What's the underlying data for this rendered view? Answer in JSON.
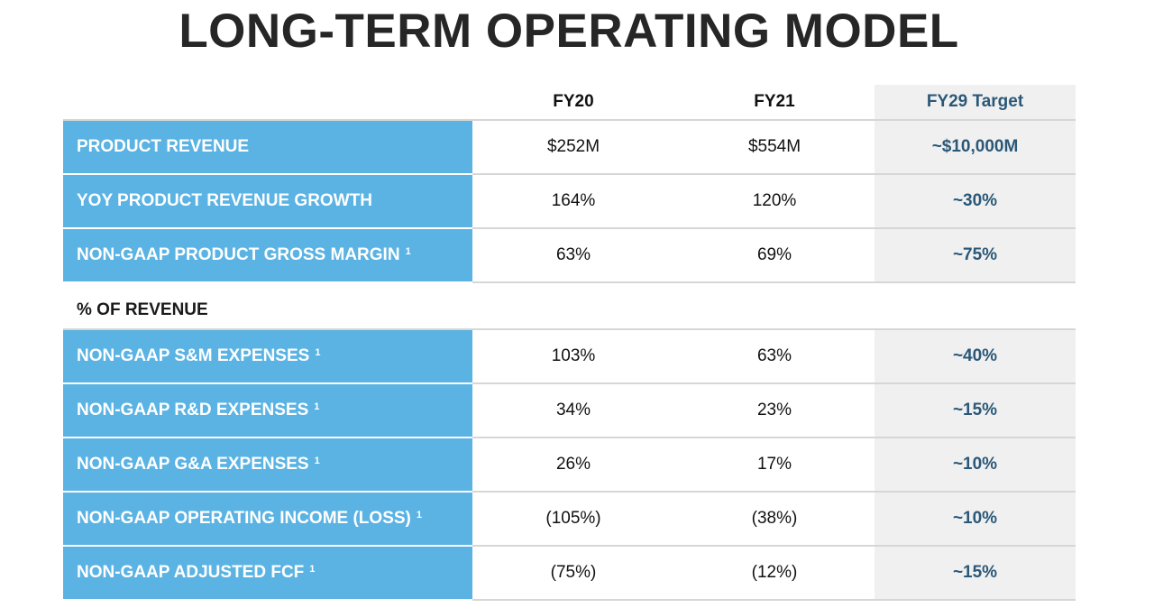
{
  "title": "LONG-TERM OPERATING MODEL",
  "columns": {
    "fy20": "FY20",
    "fy21": "FY21",
    "target": "FY29 Target"
  },
  "footnote_marker": "1",
  "rows_top": [
    {
      "label": "PRODUCT REVENUE",
      "footnote": false,
      "fy20": "$252M",
      "fy21": "$554M",
      "target": "~$10,000M"
    },
    {
      "label": "YOY PRODUCT REVENUE GROWTH",
      "footnote": false,
      "fy20": "164%",
      "fy21": "120%",
      "target": "~30%"
    },
    {
      "label": "NON-GAAP PRODUCT GROSS MARGIN",
      "footnote": true,
      "fy20": "63%",
      "fy21": "69%",
      "target": "~75%"
    }
  ],
  "section_label": "% OF REVENUE",
  "rows_bottom": [
    {
      "label": "NON-GAAP S&M EXPENSES",
      "footnote": true,
      "fy20": "103%",
      "fy21": "63%",
      "target": "~40%"
    },
    {
      "label": "NON-GAAP R&D EXPENSES",
      "footnote": true,
      "fy20": "34%",
      "fy21": "23%",
      "target": "~15%"
    },
    {
      "label": "NON-GAAP G&A EXPENSES",
      "footnote": true,
      "fy20": "26%",
      "fy21": "17%",
      "target": "~10%"
    },
    {
      "label": "NON-GAAP OPERATING INCOME (LOSS)",
      "footnote": true,
      "fy20": "(105%)",
      "fy21": "(38%)",
      "target": "~10%"
    },
    {
      "label": "NON-GAAP ADJUSTED FCF",
      "footnote": true,
      "fy20": "(75%)",
      "fy21": "(12%)",
      "target": "~15%"
    }
  ],
  "colors": {
    "label_bg": "#5ab3e3",
    "target_bg": "#f0f0f0",
    "target_text": "#2b5878",
    "title_text": "#262626"
  }
}
